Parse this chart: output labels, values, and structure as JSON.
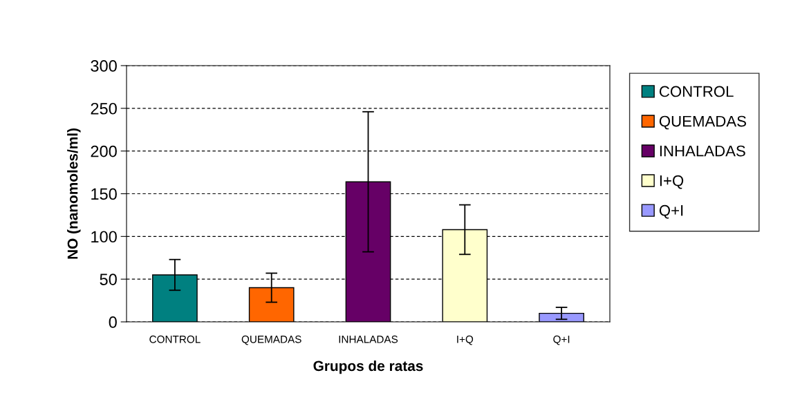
{
  "chart_data": {
    "type": "bar",
    "xlabel": "Grupos de ratas",
    "ylabel": "NO (nanomoles/ml)",
    "categories": [
      "CONTROL",
      "QUEMADAS",
      "INHALADAS",
      "I+Q",
      "Q+I"
    ],
    "series": [
      {
        "name": "CONTROL",
        "color": "#008080",
        "values": [
          55,
          null,
          null,
          null,
          null
        ],
        "errors": [
          18,
          null,
          null,
          null,
          null
        ]
      },
      {
        "name": "QUEMADAS",
        "color": "#ff6600",
        "values": [
          null,
          40,
          null,
          null,
          null
        ],
        "errors": [
          null,
          17,
          null,
          null,
          null
        ]
      },
      {
        "name": "INHALADAS",
        "color": "#660066",
        "values": [
          null,
          null,
          164,
          null,
          null
        ],
        "errors": [
          null,
          null,
          82,
          null,
          null
        ]
      },
      {
        "name": "I+Q",
        "color": "#ffffcc",
        "values": [
          null,
          null,
          null,
          108,
          null
        ],
        "errors": [
          null,
          null,
          null,
          29,
          null
        ]
      },
      {
        "name": "Q+I",
        "color": "#9999ff",
        "values": [
          null,
          null,
          null,
          null,
          10
        ],
        "errors": [
          null,
          null,
          null,
          null,
          7
        ]
      }
    ],
    "ylim": [
      0,
      300
    ],
    "yticks": [
      0,
      50,
      100,
      150,
      200,
      250,
      300
    ],
    "grid": "y",
    "legend": "right"
  }
}
